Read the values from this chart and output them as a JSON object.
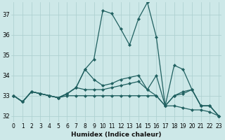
{
  "xlabel": "Humidex (Indice chaleur)",
  "bg_color": "#cde8e8",
  "grid_color": "#aacece",
  "line_color": "#206060",
  "x_ticks": [
    0,
    1,
    2,
    3,
    4,
    5,
    6,
    7,
    8,
    9,
    10,
    11,
    12,
    13,
    14,
    15,
    16,
    17,
    18,
    19,
    20,
    21,
    22,
    23
  ],
  "y_ticks": [
    32,
    33,
    34,
    35,
    36,
    37
  ],
  "xlim": [
    -0.3,
    23.3
  ],
  "ylim": [
    31.7,
    37.6
  ],
  "series": [
    [
      33.0,
      32.7,
      33.2,
      33.1,
      33.0,
      32.9,
      33.1,
      33.4,
      34.3,
      34.8,
      37.2,
      37.05,
      36.3,
      35.5,
      36.8,
      37.6,
      35.9,
      32.5,
      34.5,
      34.3,
      33.3,
      32.5,
      32.5,
      32.0
    ],
    [
      33.0,
      32.7,
      33.2,
      33.1,
      33.0,
      32.9,
      33.1,
      33.4,
      34.3,
      33.8,
      33.5,
      33.6,
      33.8,
      33.9,
      34.0,
      33.3,
      34.0,
      32.5,
      33.0,
      33.2,
      33.3,
      32.5,
      32.5,
      32.0
    ],
    [
      33.0,
      32.7,
      33.2,
      33.1,
      33.0,
      32.9,
      33.1,
      33.4,
      33.3,
      33.3,
      33.3,
      33.4,
      33.5,
      33.6,
      33.7,
      33.3,
      33.0,
      32.5,
      33.0,
      33.1,
      33.3,
      32.5,
      32.5,
      32.0
    ],
    [
      33.0,
      32.7,
      33.2,
      33.1,
      33.0,
      32.9,
      33.0,
      33.0,
      33.0,
      33.0,
      33.0,
      33.0,
      33.0,
      33.0,
      33.0,
      33.0,
      33.0,
      32.5,
      32.5,
      32.4,
      32.3,
      32.3,
      32.2,
      32.0
    ]
  ],
  "tick_fontsize": 5.5,
  "xlabel_fontsize": 6.5
}
